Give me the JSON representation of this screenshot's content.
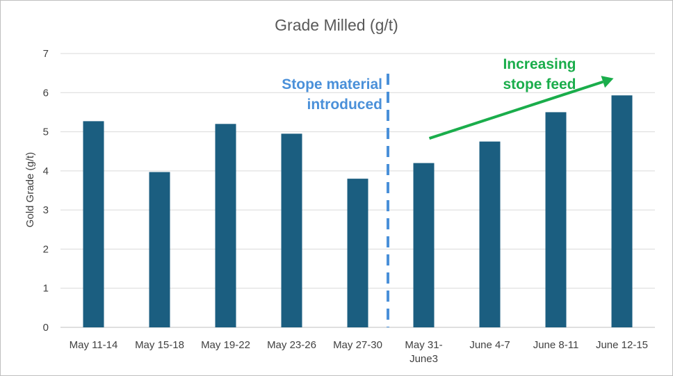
{
  "chart_data": {
    "type": "bar",
    "title": "Grade Milled (g/t)",
    "xlabel": "",
    "ylabel": "Gold Grade (g/t)",
    "ylim": [
      0,
      7
    ],
    "yticks": [
      0,
      1,
      2,
      3,
      4,
      5,
      6,
      7
    ],
    "grid": true,
    "legend": "none",
    "categories": [
      [
        "May 11-14"
      ],
      [
        "May 15-18"
      ],
      [
        "May 19-22"
      ],
      [
        "May 23-26"
      ],
      [
        "May 27-30"
      ],
      [
        "May 31-",
        "June3"
      ],
      [
        "June 4-7"
      ],
      [
        "June 8-11"
      ],
      [
        "June 12-15"
      ]
    ],
    "values": [
      5.27,
      3.97,
      5.2,
      4.95,
      3.8,
      4.2,
      4.75,
      5.5,
      5.93
    ],
    "bar_color": "#1b5e80",
    "annotations": [
      {
        "name": "stope-material-annotation",
        "lines": [
          "Stope material",
          "introduced"
        ],
        "color": "#4a90d9",
        "marker": "dashed-vertical-line",
        "between_categories": [
          4,
          5
        ]
      },
      {
        "name": "increasing-stope-feed-annotation",
        "lines": [
          "Increasing",
          "stope feed"
        ],
        "color": "#1aad4b",
        "marker": "arrow",
        "arrow_from": {
          "category": 5,
          "y": 4.6
        },
        "arrow_to": {
          "category": 8,
          "y": 6.4
        }
      }
    ]
  }
}
